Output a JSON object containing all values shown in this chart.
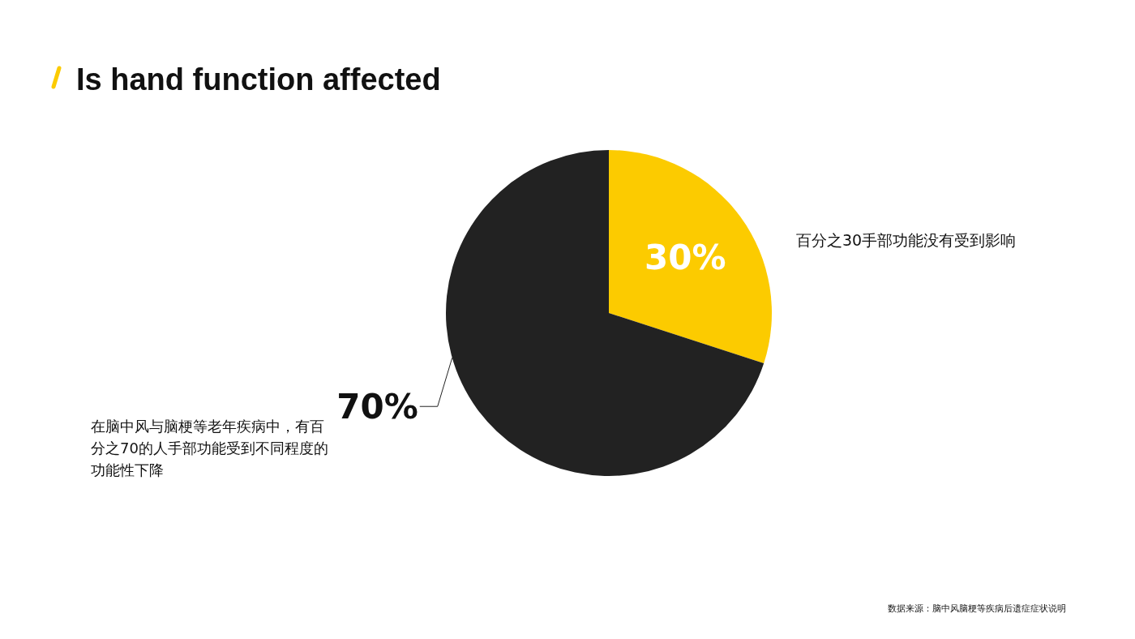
{
  "chart_data": {
    "type": "pie",
    "title": "Is hand function affected",
    "categories": [
      null,
      null
    ],
    "values": [
      30,
      70
    ],
    "colors": [
      "#fccb00",
      "#222222"
    ],
    "value_labels": [
      "30%",
      "70%"
    ],
    "annotations": [
      "百分之30手部功能没有受到影响",
      "在脑中风与脑梗等老年疾病中，有百分之70的人手部功能受到不同程度的功能性下降",
      "数据来源：脑中风脑梗等疾病后遗症症状说明"
    ]
  }
}
